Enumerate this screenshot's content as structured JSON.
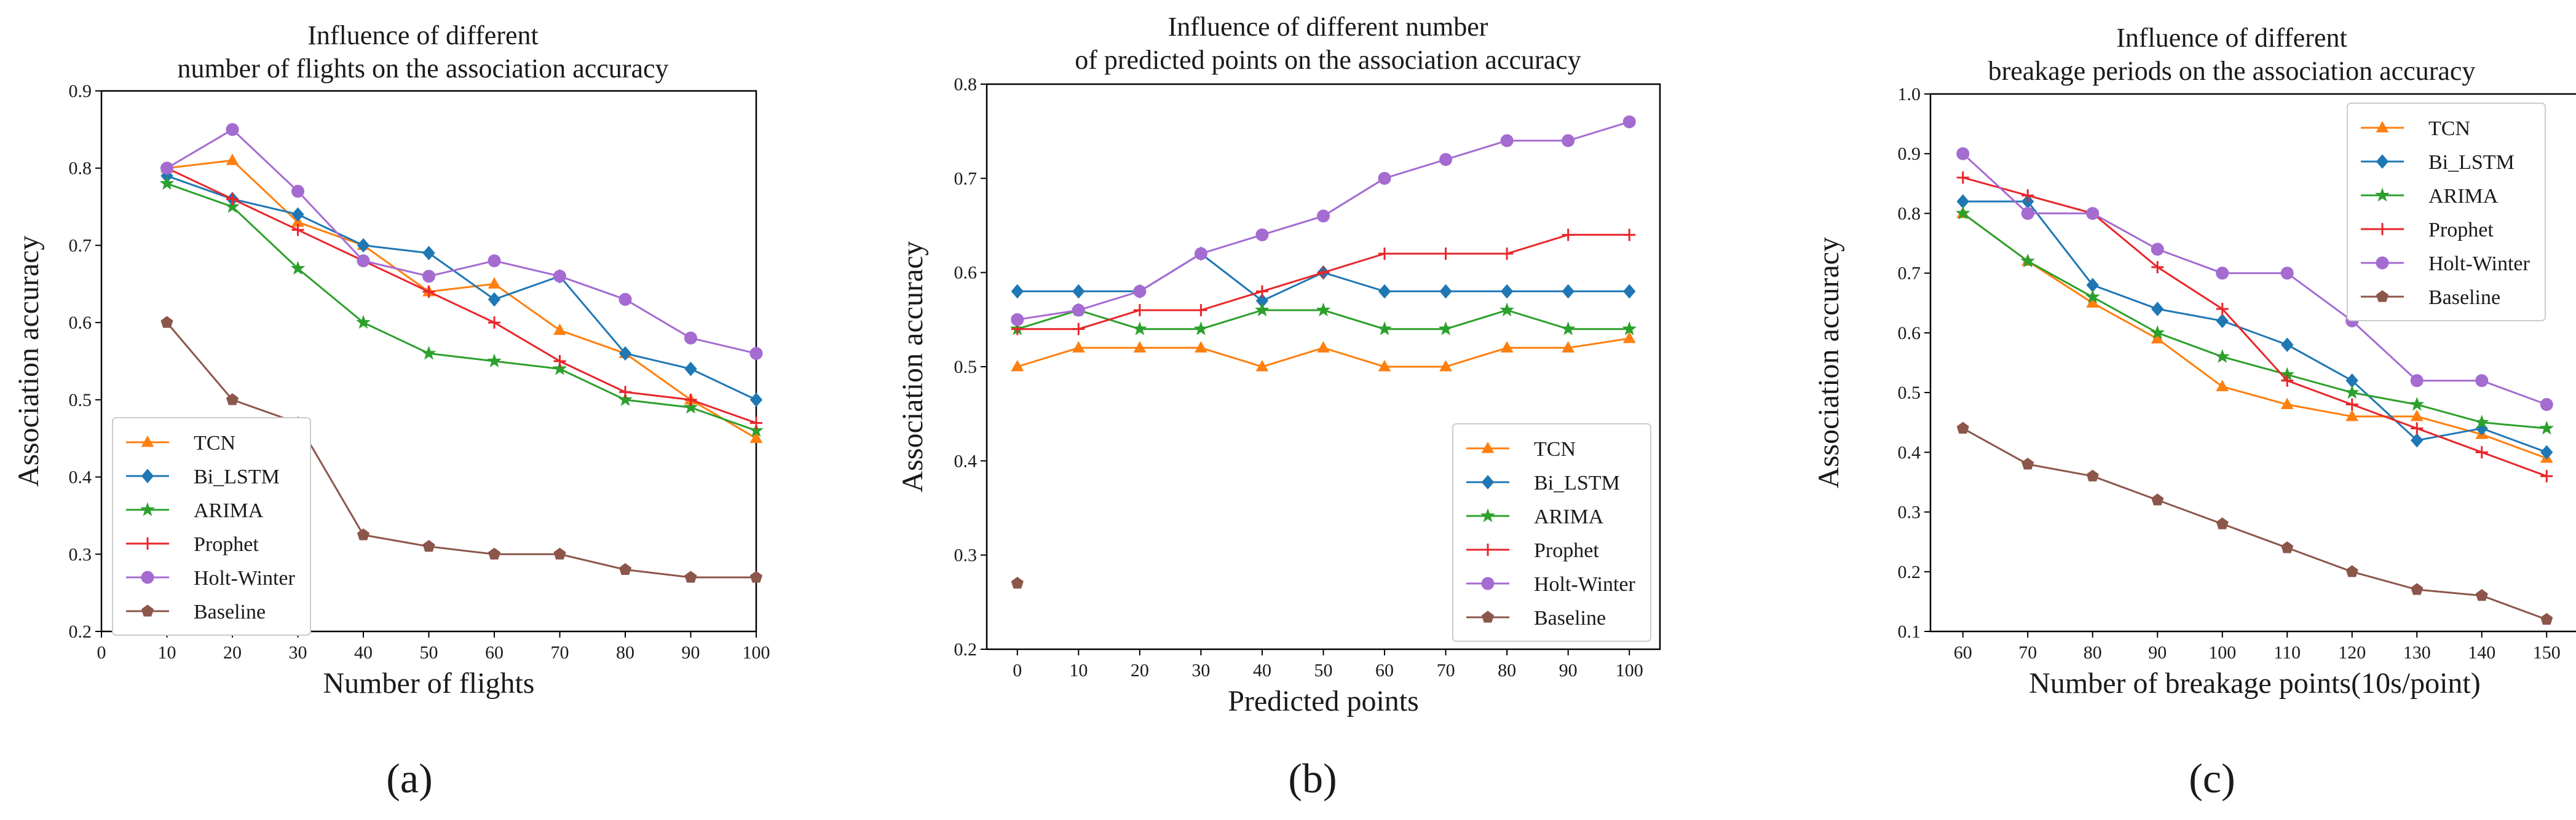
{
  "colors": {
    "TCN": "#ff7f0e",
    "Bi_LSTM": "#1f77b4",
    "ARIMA": "#2ca02c",
    "Prophet": "#e8262a",
    "Holt-Winter": "#a46bd1",
    "Baseline": "#8c564b"
  },
  "markers": {
    "TCN": "triangle",
    "Bi_LSTM": "diamond",
    "ARIMA": "star",
    "Prophet": "plus",
    "Holt-Winter": "circle",
    "Baseline": "pentagon"
  },
  "chart_data": [
    {
      "type": "line",
      "panel_label": "(a)",
      "title_lines": [
        "Influence of different",
        "number of flights on the association accuracy"
      ],
      "xlabel": "Number of flights",
      "ylabel": "Association accuracy",
      "xlim": [
        0,
        100
      ],
      "ylim": [
        0.2,
        0.9
      ],
      "xticks": [
        0,
        10,
        20,
        30,
        40,
        50,
        60,
        70,
        80,
        90,
        100
      ],
      "yticks": [
        0.2,
        0.3,
        0.4,
        0.5,
        0.6,
        0.7,
        0.8,
        0.9
      ],
      "legend_position": "lower-left",
      "series": [
        {
          "name": "TCN",
          "x": [
            10,
            20,
            30,
            40,
            50,
            60,
            70,
            80,
            90,
            100
          ],
          "y": [
            0.8,
            0.81,
            0.73,
            0.7,
            0.64,
            0.65,
            0.59,
            0.56,
            0.5,
            0.45
          ]
        },
        {
          "name": "Bi_LSTM",
          "x": [
            10,
            20,
            30,
            40,
            50,
            60,
            70,
            80,
            90,
            100
          ],
          "y": [
            0.79,
            0.76,
            0.74,
            0.7,
            0.69,
            0.63,
            0.66,
            0.56,
            0.54,
            0.5
          ]
        },
        {
          "name": "ARIMA",
          "x": [
            10,
            20,
            30,
            40,
            50,
            60,
            70,
            80,
            90,
            100
          ],
          "y": [
            0.78,
            0.75,
            0.67,
            0.6,
            0.56,
            0.55,
            0.54,
            0.5,
            0.49,
            0.46
          ]
        },
        {
          "name": "Prophet",
          "x": [
            10,
            20,
            30,
            40,
            50,
            60,
            70,
            80,
            90,
            100
          ],
          "y": [
            0.8,
            0.76,
            0.72,
            0.68,
            0.64,
            0.6,
            0.55,
            0.51,
            0.5,
            0.47
          ]
        },
        {
          "name": "Holt-Winter",
          "x": [
            10,
            20,
            30,
            40,
            50,
            60,
            70,
            80,
            90,
            100
          ],
          "y": [
            0.8,
            0.85,
            0.77,
            0.68,
            0.66,
            0.68,
            0.66,
            0.63,
            0.58,
            0.56
          ]
        },
        {
          "name": "Baseline",
          "x": [
            10,
            20,
            30,
            40,
            50,
            60,
            70,
            80,
            90,
            100
          ],
          "y": [
            0.6,
            0.5,
            0.47,
            0.325,
            0.31,
            0.3,
            0.3,
            0.28,
            0.27,
            0.27
          ]
        }
      ]
    },
    {
      "type": "line",
      "panel_label": "(b)",
      "title_lines": [
        "Influence of different number",
        "of predicted points on the association accuracy"
      ],
      "xlabel": "Predicted points",
      "ylabel": "Association accuracy",
      "xlim": [
        -5,
        105
      ],
      "ylim": [
        0.2,
        0.8
      ],
      "xticks": [
        0,
        10,
        20,
        30,
        40,
        50,
        60,
        70,
        80,
        90,
        100
      ],
      "yticks": [
        0.2,
        0.3,
        0.4,
        0.5,
        0.6,
        0.7,
        0.8
      ],
      "legend_position": "lower-right",
      "series": [
        {
          "name": "TCN",
          "x": [
            0,
            10,
            20,
            30,
            40,
            50,
            60,
            70,
            80,
            90,
            100
          ],
          "y": [
            0.5,
            0.52,
            0.52,
            0.52,
            0.5,
            0.52,
            0.5,
            0.5,
            0.52,
            0.52,
            0.53
          ]
        },
        {
          "name": "Bi_LSTM",
          "x": [
            0,
            10,
            20,
            30,
            40,
            50,
            60,
            70,
            80,
            90,
            100
          ],
          "y": [
            0.58,
            0.58,
            0.58,
            0.62,
            0.57,
            0.6,
            0.58,
            0.58,
            0.58,
            0.58,
            0.58
          ]
        },
        {
          "name": "ARIMA",
          "x": [
            0,
            10,
            20,
            30,
            40,
            50,
            60,
            70,
            80,
            90,
            100
          ],
          "y": [
            0.54,
            0.56,
            0.54,
            0.54,
            0.56,
            0.56,
            0.54,
            0.54,
            0.56,
            0.54,
            0.54
          ]
        },
        {
          "name": "Prophet",
          "x": [
            0,
            10,
            20,
            30,
            40,
            50,
            60,
            70,
            80,
            90,
            100
          ],
          "y": [
            0.54,
            0.54,
            0.56,
            0.56,
            0.58,
            0.6,
            0.62,
            0.62,
            0.62,
            0.64,
            0.64
          ]
        },
        {
          "name": "Holt-Winter",
          "x": [
            0,
            10,
            20,
            30,
            40,
            50,
            60,
            70,
            80,
            90,
            100
          ],
          "y": [
            0.55,
            0.56,
            0.58,
            0.62,
            0.64,
            0.66,
            0.7,
            0.72,
            0.74,
            0.74,
            0.76
          ]
        },
        {
          "name": "Baseline",
          "x": [
            0
          ],
          "y": [
            0.27
          ]
        }
      ]
    },
    {
      "type": "line",
      "panel_label": "(c)",
      "title_lines": [
        "Influence of different",
        "breakage periods on the association accuracy"
      ],
      "xlabel": "Number of breakage points(10s/point)",
      "ylabel": "Association accuracy",
      "xlim": [
        55,
        155
      ],
      "ylim": [
        0.1,
        1.0
      ],
      "xticks": [
        60,
        70,
        80,
        90,
        100,
        110,
        120,
        130,
        140,
        150
      ],
      "yticks": [
        0.1,
        0.2,
        0.3,
        0.4,
        0.5,
        0.6,
        0.7,
        0.8,
        0.9,
        1.0
      ],
      "legend_position": "top-right",
      "series": [
        {
          "name": "TCN",
          "x": [
            60,
            70,
            80,
            90,
            100,
            110,
            120,
            130,
            140,
            150
          ],
          "y": [
            0.8,
            0.72,
            0.65,
            0.59,
            0.51,
            0.48,
            0.46,
            0.46,
            0.43,
            0.39
          ]
        },
        {
          "name": "Bi_LSTM",
          "x": [
            60,
            70,
            80,
            90,
            100,
            110,
            120,
            130,
            140,
            150
          ],
          "y": [
            0.82,
            0.82,
            0.68,
            0.64,
            0.62,
            0.58,
            0.52,
            0.42,
            0.44,
            0.4
          ]
        },
        {
          "name": "ARIMA",
          "x": [
            60,
            70,
            80,
            90,
            100,
            110,
            120,
            130,
            140,
            150
          ],
          "y": [
            0.8,
            0.72,
            0.66,
            0.6,
            0.56,
            0.53,
            0.5,
            0.48,
            0.45,
            0.44
          ]
        },
        {
          "name": "Prophet",
          "x": [
            60,
            70,
            80,
            90,
            100,
            110,
            120,
            130,
            140,
            150
          ],
          "y": [
            0.86,
            0.83,
            0.8,
            0.71,
            0.64,
            0.52,
            0.48,
            0.44,
            0.4,
            0.36
          ]
        },
        {
          "name": "Holt-Winter",
          "x": [
            60,
            70,
            80,
            90,
            100,
            110,
            120,
            130,
            140,
            150
          ],
          "y": [
            0.9,
            0.8,
            0.8,
            0.74,
            0.7,
            0.7,
            0.62,
            0.52,
            0.52,
            0.48
          ]
        },
        {
          "name": "Baseline",
          "x": [
            60,
            70,
            80,
            90,
            100,
            110,
            120,
            130,
            140,
            150
          ],
          "y": [
            0.44,
            0.38,
            0.36,
            0.32,
            0.28,
            0.24,
            0.2,
            0.17,
            0.16,
            0.12
          ]
        }
      ]
    }
  ]
}
